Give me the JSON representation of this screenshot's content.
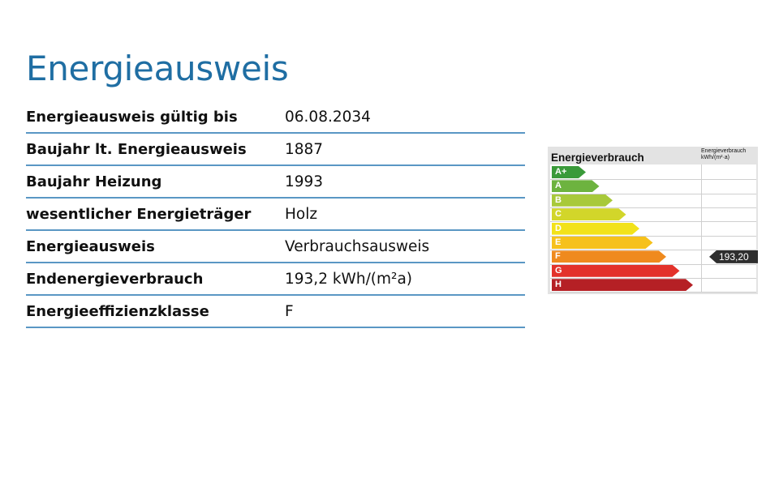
{
  "page_title": "Energieausweis",
  "rows": [
    {
      "label": "Energieausweis gültig bis",
      "value": "06.08.2034"
    },
    {
      "label": "Baujahr lt. Energieausweis",
      "value": "1887"
    },
    {
      "label": "Baujahr Heizung",
      "value": "1993"
    },
    {
      "label": "wesentlicher Energieträger",
      "value": "Holz"
    },
    {
      "label": "Energieausweis",
      "value": "Verbrauchsausweis"
    },
    {
      "label": "Endenergieverbrauch",
      "value": "193,2 kWh/(m²a)"
    },
    {
      "label": "Energieeffizienzklasse",
      "value": "F"
    }
  ],
  "energy_card": {
    "title": "Energieverbrauch",
    "column_header_line1": "Energieverbrauch",
    "column_header_line2": "kWh/(m²·a)",
    "marker_value": "193,20",
    "marker_class": "F",
    "classes": [
      {
        "label": "A+",
        "color": "#3a9a3a"
      },
      {
        "label": "A",
        "color": "#6db33f"
      },
      {
        "label": "B",
        "color": "#a8c93a"
      },
      {
        "label": "C",
        "color": "#d2d62a"
      },
      {
        "label": "D",
        "color": "#f2e21a"
      },
      {
        "label": "E",
        "color": "#f6c11b"
      },
      {
        "label": "F",
        "color": "#ef8a1e"
      },
      {
        "label": "G",
        "color": "#e3322b"
      },
      {
        "label": "H",
        "color": "#b52025"
      }
    ]
  }
}
